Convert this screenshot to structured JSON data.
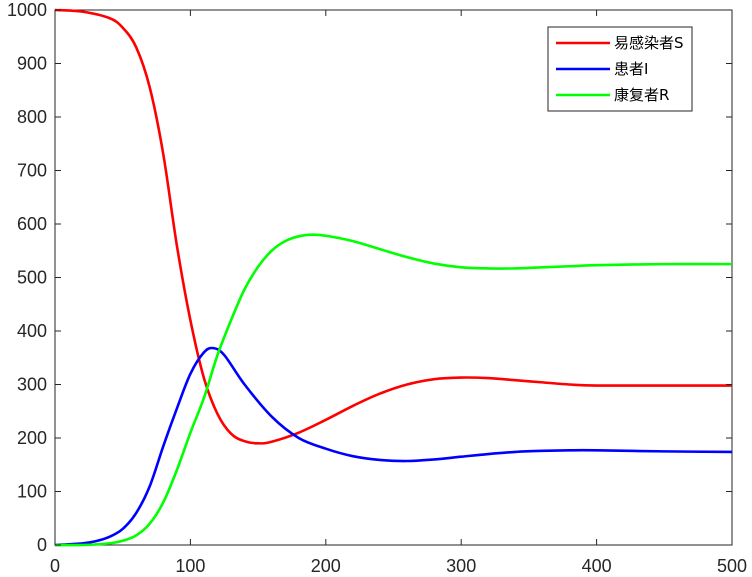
{
  "chart_data": {
    "type": "line",
    "xlim": [
      0,
      500
    ],
    "ylim": [
      0,
      1000
    ],
    "x_ticks": [
      0,
      100,
      200,
      300,
      400,
      500
    ],
    "y_ticks": [
      0,
      100,
      200,
      300,
      400,
      500,
      600,
      700,
      800,
      900,
      1000
    ],
    "grid": false,
    "legend_position": "top-right",
    "series": [
      {
        "name": "易感染者S",
        "color": "#ff0000",
        "points": [
          [
            0,
            1000
          ],
          [
            20,
            997
          ],
          [
            40,
            985
          ],
          [
            50,
            967
          ],
          [
            60,
            930
          ],
          [
            70,
            855
          ],
          [
            80,
            730
          ],
          [
            90,
            560
          ],
          [
            100,
            420
          ],
          [
            110,
            312
          ],
          [
            120,
            245
          ],
          [
            130,
            208
          ],
          [
            140,
            194
          ],
          [
            150,
            190
          ],
          [
            160,
            193
          ],
          [
            180,
            210
          ],
          [
            200,
            234
          ],
          [
            220,
            260
          ],
          [
            240,
            283
          ],
          [
            260,
            300
          ],
          [
            280,
            310
          ],
          [
            300,
            313
          ],
          [
            320,
            312
          ],
          [
            340,
            308
          ],
          [
            360,
            304
          ],
          [
            380,
            300
          ],
          [
            400,
            298
          ],
          [
            450,
            298
          ],
          [
            500,
            298
          ]
        ]
      },
      {
        "name": "患者I",
        "color": "#0000ff",
        "points": [
          [
            0,
            0
          ],
          [
            20,
            3
          ],
          [
            30,
            7
          ],
          [
            40,
            15
          ],
          [
            50,
            30
          ],
          [
            60,
            60
          ],
          [
            70,
            110
          ],
          [
            80,
            185
          ],
          [
            90,
            255
          ],
          [
            100,
            320
          ],
          [
            110,
            360
          ],
          [
            117,
            368
          ],
          [
            125,
            355
          ],
          [
            140,
            300
          ],
          [
            160,
            240
          ],
          [
            180,
            200
          ],
          [
            200,
            180
          ],
          [
            220,
            166
          ],
          [
            240,
            159
          ],
          [
            260,
            157
          ],
          [
            280,
            160
          ],
          [
            300,
            165
          ],
          [
            320,
            170
          ],
          [
            340,
            174
          ],
          [
            360,
            176
          ],
          [
            380,
            177
          ],
          [
            400,
            177
          ],
          [
            450,
            175
          ],
          [
            500,
            174
          ]
        ]
      },
      {
        "name": "康复者R",
        "color": "#00ff00",
        "points": [
          [
            0,
            0
          ],
          [
            20,
            0
          ],
          [
            40,
            3
          ],
          [
            50,
            8
          ],
          [
            60,
            18
          ],
          [
            70,
            40
          ],
          [
            80,
            80
          ],
          [
            90,
            140
          ],
          [
            100,
            210
          ],
          [
            110,
            275
          ],
          [
            120,
            355
          ],
          [
            130,
            420
          ],
          [
            140,
            478
          ],
          [
            150,
            520
          ],
          [
            160,
            550
          ],
          [
            170,
            568
          ],
          [
            180,
            577
          ],
          [
            190,
            580
          ],
          [
            200,
            578
          ],
          [
            220,
            568
          ],
          [
            240,
            553
          ],
          [
            260,
            538
          ],
          [
            280,
            526
          ],
          [
            300,
            519
          ],
          [
            320,
            517
          ],
          [
            340,
            517
          ],
          [
            360,
            519
          ],
          [
            380,
            521
          ],
          [
            400,
            523
          ],
          [
            450,
            525
          ],
          [
            500,
            525
          ]
        ]
      }
    ]
  }
}
